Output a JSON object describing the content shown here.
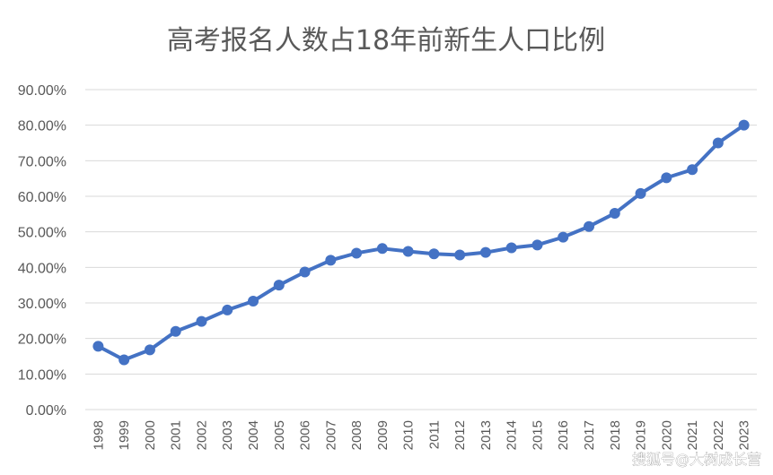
{
  "watermark": "搜狐号@大树成长营",
  "chart_data": {
    "type": "line",
    "title": "高考报名人数占18年前新生人口比例",
    "xlabel": "",
    "ylabel": "",
    "categories": [
      "1998",
      "1999",
      "2000",
      "2001",
      "2002",
      "2003",
      "2004",
      "2005",
      "2006",
      "2007",
      "2008",
      "2009",
      "2010",
      "2011",
      "2012",
      "2013",
      "2014",
      "2015",
      "2016",
      "2017",
      "2018",
      "2019",
      "2020",
      "2021",
      "2022",
      "2023"
    ],
    "yticks": [
      "0.00%",
      "10.00%",
      "20.00%",
      "30.00%",
      "40.00%",
      "50.00%",
      "60.00%",
      "70.00%",
      "80.00%",
      "90.00%"
    ],
    "ylim": [
      0,
      90
    ],
    "grid": true,
    "legend": "none",
    "series": [
      {
        "color": "#4472c4",
        "values": [
          17.8,
          14.0,
          16.8,
          22.0,
          24.8,
          28.0,
          30.5,
          35.0,
          38.7,
          42.0,
          44.0,
          45.3,
          44.5,
          43.8,
          43.5,
          44.2,
          45.5,
          46.3,
          48.5,
          51.5,
          55.2,
          60.8,
          65.2,
          67.5,
          75.0,
          80.0
        ]
      }
    ]
  }
}
